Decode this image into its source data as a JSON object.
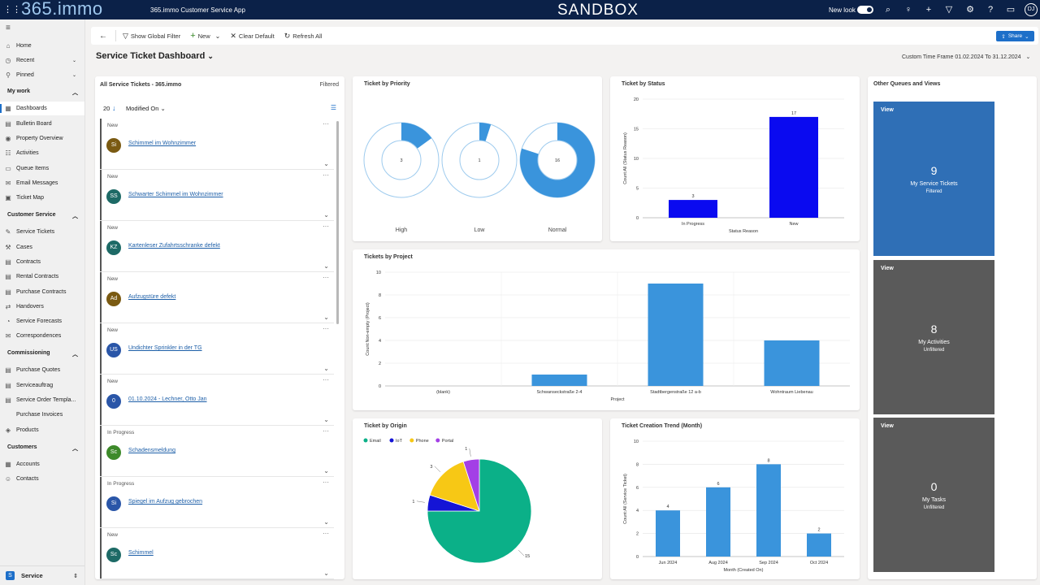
{
  "topbar": {
    "brand": "365.immo",
    "app_title": "365.immo Customer Service App",
    "env": "SANDBOX",
    "new_look": "New look",
    "user_initials": "DJ"
  },
  "sidebar": {
    "home": "Home",
    "recent": "Recent",
    "pinned": "Pinned",
    "sections": [
      {
        "label": "My work",
        "items": [
          "Dashboards",
          "Bulletin Board",
          "Property Overview",
          "Activities",
          "Queue Items",
          "Email Messages",
          "Ticket Map"
        ]
      },
      {
        "label": "Customer Service",
        "items": [
          "Service Tickets",
          "Cases",
          "Contracts",
          "Rental Contracts",
          "Purchase Contracts",
          "Handovers",
          "Service Forecasts",
          "Correspondences"
        ]
      },
      {
        "label": "Commissioning",
        "items": [
          "Purchase Quotes",
          "Serviceauftrag",
          "Service Order Templa...",
          "Purchase Invoices",
          "Products"
        ]
      },
      {
        "label": "Customers",
        "items": [
          "Accounts",
          "Contacts"
        ]
      }
    ],
    "footer": {
      "badge": "S",
      "label": "Service"
    }
  },
  "cmdbar": {
    "filter": "Show Global Filter",
    "new": "New",
    "clear": "Clear Default",
    "refresh": "Refresh All",
    "share": "Share"
  },
  "dashboard": {
    "title": "Service Ticket Dashboard",
    "timeframe": "Custom Time Frame 01.02.2024 To 31.12.2024"
  },
  "ticket_list": {
    "title": "All Service Tickets - 365.immo",
    "filtered": "Filtered",
    "count": "20",
    "sort": "Modified On",
    "items": [
      {
        "status": "New",
        "initials": "Si",
        "title": "Schimmel im Wohnzimmer",
        "color": "#7a5a12"
      },
      {
        "status": "New",
        "initials": "SS",
        "title": "Schwarter Schimmel im Wohnzimmer",
        "color": "#1d6a66"
      },
      {
        "status": "New",
        "initials": "KZ",
        "title": "Kartenleser Zufahrtsschranke defekt",
        "color": "#1d6a66"
      },
      {
        "status": "New",
        "initials": "Ad",
        "title": "Aufzugstüre defekt",
        "color": "#7a5a12"
      },
      {
        "status": "New",
        "initials": "US",
        "title": "Undichter Sprinkler in der TG",
        "color": "#2a56a8"
      },
      {
        "status": "New",
        "initials": "0",
        "title": "01.10.2024 - Lechner, Otto Jan",
        "color": "#2a56a8"
      },
      {
        "status": "In Progress",
        "initials": "Sc",
        "title": "Schadensmeldung",
        "color": "#3d8a2a"
      },
      {
        "status": "In Progress",
        "initials": "Si",
        "title": "Spiegel im Aufzug gebrochen",
        "color": "#2a56a8"
      },
      {
        "status": "New",
        "initials": "Sc",
        "title": "Schimmel",
        "color": "#1d6a66"
      }
    ]
  },
  "panels": {
    "priority": "Ticket by Priority",
    "status": "Ticket by Status",
    "project": "Tickets by Project",
    "origin": "Ticket by Origin",
    "trend": "Ticket Creation Trend (Month)",
    "queues": "Other Queues and Views"
  },
  "chart_data": [
    {
      "type": "pie",
      "title": "Ticket by Priority",
      "categories": [
        "High",
        "Low",
        "Normal"
      ],
      "values": [
        3,
        1,
        16
      ]
    },
    {
      "type": "bar",
      "title": "Ticket by Status",
      "categories": [
        "In Progress",
        "New"
      ],
      "values": [
        3,
        17
      ],
      "xlabel": "Status Reason",
      "ylabel": "Count:All (Status Reason)",
      "ylim": [
        0,
        20
      ],
      "ticks": [
        0,
        5,
        10,
        15,
        20
      ]
    },
    {
      "type": "bar",
      "title": "Tickets by Project",
      "categories": [
        "(blank)",
        "Schwanseckstraße 2-4",
        "Stadtbergenstraße 12 a-b",
        "Wohntraum Liebenau"
      ],
      "values": [
        0,
        1,
        9,
        4
      ],
      "xlabel": "Project",
      "ylabel": "Count:Non-empty (Project)",
      "ylim": [
        0,
        10
      ],
      "ticks": [
        0,
        2,
        4,
        6,
        8,
        10
      ]
    },
    {
      "type": "pie",
      "title": "Ticket by Origin",
      "categories": [
        "Email",
        "IoT",
        "Phone",
        "Portal"
      ],
      "values": [
        15,
        1,
        3,
        1
      ],
      "colors": [
        "#0bb088",
        "#1414d6",
        "#f7c815",
        "#a33fe6"
      ]
    },
    {
      "type": "bar",
      "title": "Ticket Creation Trend (Month)",
      "categories": [
        "Jun 2024",
        "Aug 2024",
        "Sep 2024",
        "Oct 2024"
      ],
      "values": [
        4,
        6,
        8,
        2
      ],
      "xlabel": "Month (Created On)",
      "ylabel": "Count:All (Service Ticket)",
      "ylim": [
        0,
        10
      ],
      "ticks": [
        0,
        2,
        4,
        6,
        8,
        10
      ]
    }
  ],
  "queues": [
    {
      "view": "View",
      "count": "9",
      "name": "My Service Tickets",
      "filter": "Filtered",
      "color": "#2f6fb6"
    },
    {
      "view": "View",
      "count": "8",
      "name": "My Activities",
      "filter": "Unfiltered",
      "color": "#5a5a5a"
    },
    {
      "view": "View",
      "count": "0",
      "name": "My Tasks",
      "filter": "Unfiltered",
      "color": "#5a5a5a"
    }
  ]
}
